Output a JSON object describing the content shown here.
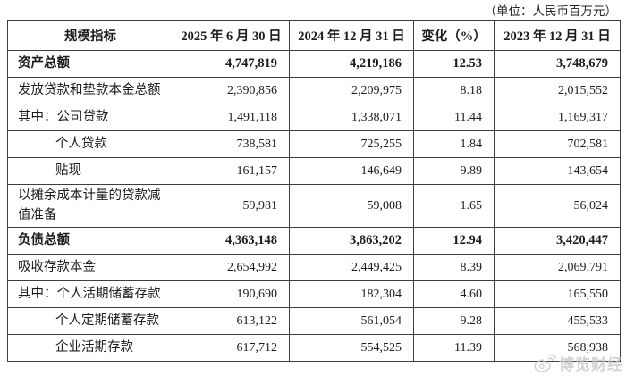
{
  "unit_note": "（单位：人民币百万元）",
  "table": {
    "headers": [
      "规模指标",
      "2025 年 6 月 30 日",
      "2024 年 12 月 31 日",
      "变化（%）",
      "2023 年 12 月 31 日"
    ],
    "rows": [
      {
        "label": "资产总额",
        "indent": false,
        "bold": true,
        "tall": false,
        "values": [
          "4,747,819",
          "4,219,186",
          "12.53",
          "3,748,679"
        ]
      },
      {
        "label": "发放贷款和垫款本金总额",
        "indent": false,
        "bold": false,
        "tall": false,
        "values": [
          "2,390,856",
          "2,209,975",
          "8.18",
          "2,015,552"
        ]
      },
      {
        "label": "其中：公司贷款",
        "indent": false,
        "bold": false,
        "tall": false,
        "values": [
          "1,491,118",
          "1,338,071",
          "11.44",
          "1,169,317"
        ]
      },
      {
        "label": "个人贷款",
        "indent": true,
        "bold": false,
        "tall": false,
        "values": [
          "738,581",
          "725,255",
          "1.84",
          "702,581"
        ]
      },
      {
        "label": "贴现",
        "indent": true,
        "bold": false,
        "tall": false,
        "values": [
          "161,157",
          "146,649",
          "9.89",
          "143,654"
        ]
      },
      {
        "label": "以摊余成本计量的贷款减值准备",
        "indent": false,
        "bold": false,
        "tall": true,
        "values": [
          "59,981",
          "59,008",
          "1.65",
          "56,024"
        ]
      },
      {
        "label": "负债总额",
        "indent": false,
        "bold": true,
        "tall": false,
        "values": [
          "4,363,148",
          "3,863,202",
          "12.94",
          "3,420,447"
        ]
      },
      {
        "label": "吸收存款本金",
        "indent": false,
        "bold": false,
        "tall": false,
        "values": [
          "2,654,992",
          "2,449,425",
          "8.39",
          "2,069,791"
        ]
      },
      {
        "label": "其中：个人活期储蓄存款",
        "indent": false,
        "bold": false,
        "tall": false,
        "values": [
          "190,690",
          "182,304",
          "4.60",
          "165,550"
        ]
      },
      {
        "label": "个人定期储蓄存款",
        "indent": true,
        "bold": false,
        "tall": false,
        "values": [
          "613,122",
          "561,054",
          "9.28",
          "455,533"
        ]
      },
      {
        "label": "企业活期存款",
        "indent": true,
        "bold": false,
        "tall": false,
        "values": [
          "617,712",
          "554,525",
          "11.39",
          "568,938"
        ]
      }
    ]
  },
  "watermark": {
    "icon": "weibo-logo-icon",
    "text": "博览财经",
    "color": "#c7c7c7"
  }
}
